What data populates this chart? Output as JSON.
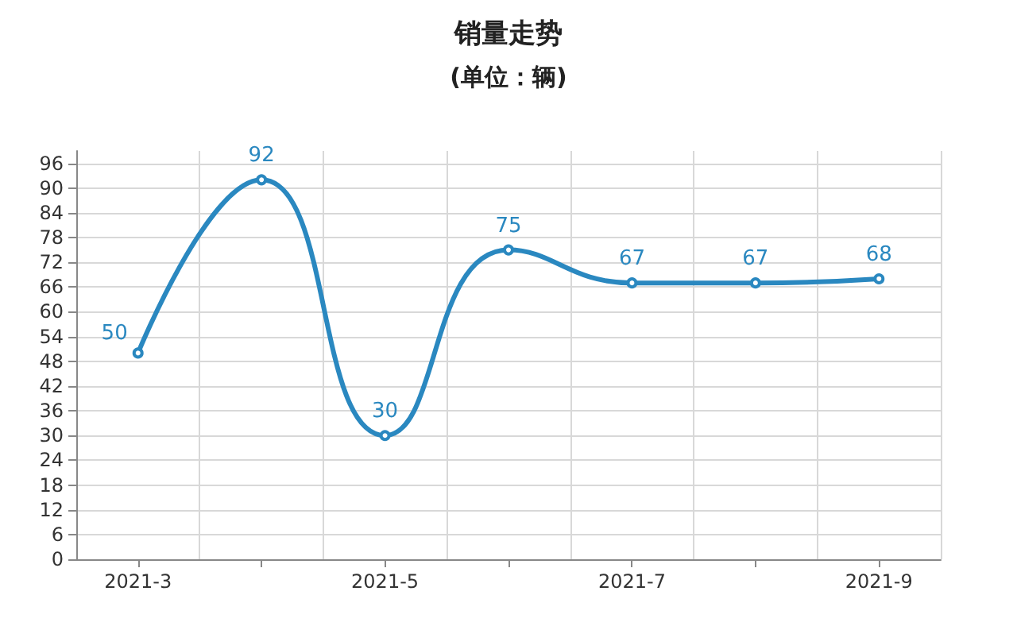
{
  "chart_data": {
    "type": "line",
    "title": "销量走势",
    "subtitle": "(单位：辆)",
    "categories": [
      "2021-3",
      null,
      "2021-5",
      null,
      "2021-7",
      null,
      "2021-9"
    ],
    "series": [
      {
        "color": "#2a88c0",
        "values": [
          50,
          92,
          30,
          75,
          67,
          67,
          68
        ]
      }
    ],
    "ylim": [
      0,
      99
    ],
    "yticks": [
      0,
      6,
      12,
      18,
      24,
      30,
      36,
      42,
      48,
      54,
      60,
      66,
      72,
      78,
      84,
      90,
      96
    ],
    "grid": true,
    "marker": "circle",
    "line_style": "solid",
    "data_labels": true
  }
}
